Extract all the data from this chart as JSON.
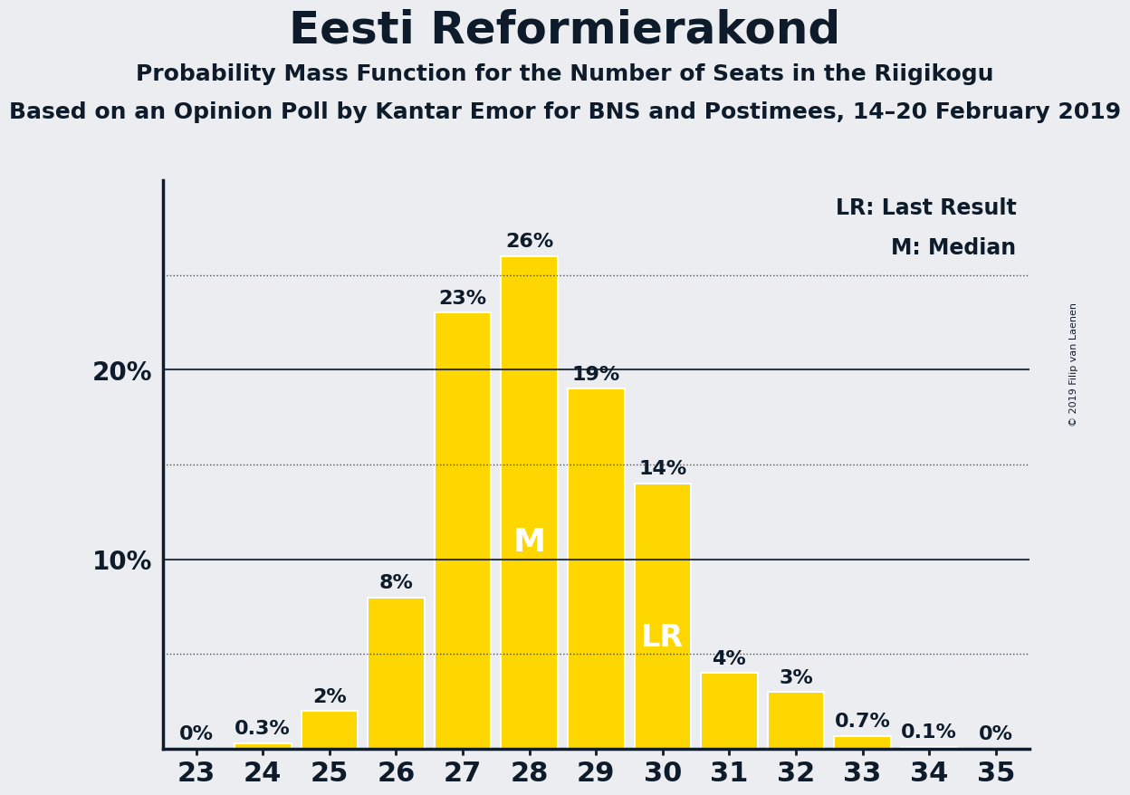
{
  "title": "Eesti Reformierakond",
  "subtitle1": "Probability Mass Function for the Number of Seats in the Riigikogu",
  "subtitle2": "Based on an Opinion Poll by Kantar Emor for BNS and Postimees, 14–20 February 2019",
  "copyright": "© 2019 Filip van Laenen",
  "seats": [
    23,
    24,
    25,
    26,
    27,
    28,
    29,
    30,
    31,
    32,
    33,
    34,
    35
  ],
  "probabilities": [
    0.0,
    0.3,
    2.0,
    8.0,
    23.0,
    26.0,
    19.0,
    14.0,
    4.0,
    3.0,
    0.7,
    0.1,
    0.0
  ],
  "labels": [
    "0%",
    "0.3%",
    "2%",
    "8%",
    "23%",
    "26%",
    "19%",
    "14%",
    "4%",
    "3%",
    "0.7%",
    "0.1%",
    "0%"
  ],
  "bar_color": "#FFD700",
  "background_color": "#ECEDF0",
  "text_color": "#0D1B2A",
  "median_seat": 28,
  "lr_seat": 30,
  "legend_lr": "LR: Last Result",
  "legend_m": "M: Median",
  "dotted_lines": [
    5,
    15,
    25
  ],
  "solid_lines": [
    10,
    20
  ],
  "ylim": [
    0,
    30
  ],
  "title_fontsize": 36,
  "subtitle1_fontsize": 18,
  "subtitle2_fontsize": 18,
  "bar_label_fontsize": 16,
  "ytick_fontsize": 20,
  "xtick_fontsize": 22,
  "legend_fontsize": 17,
  "median_label_fontsize": 26,
  "lr_label_fontsize": 24
}
